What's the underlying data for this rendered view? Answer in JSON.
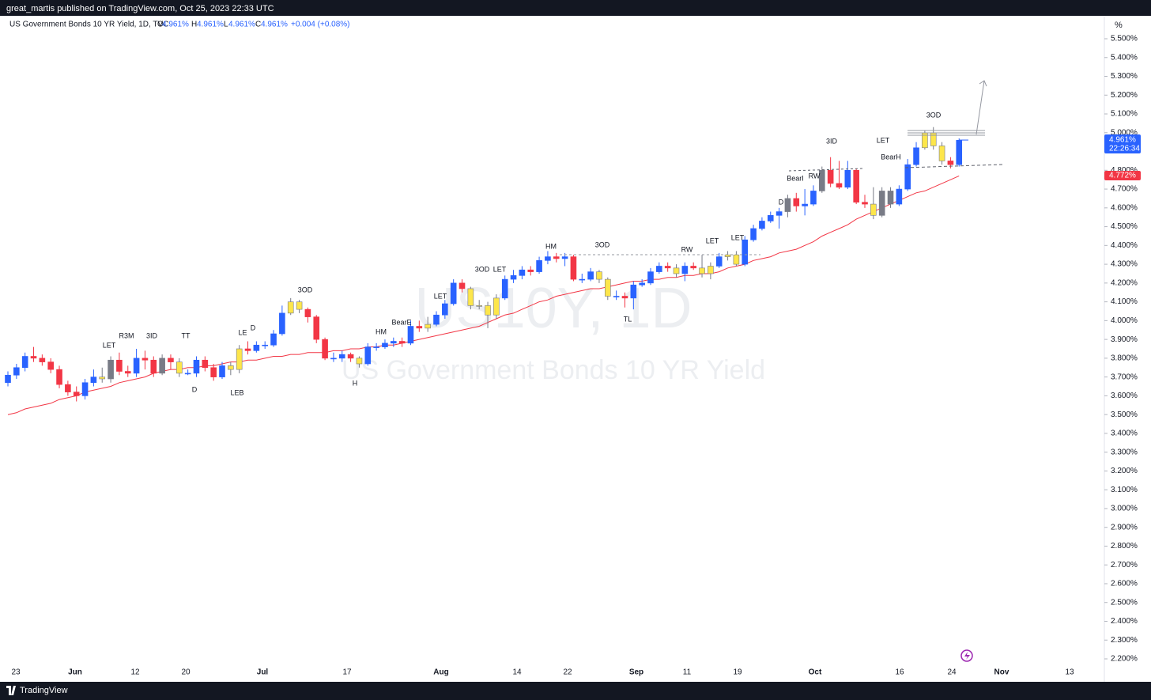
{
  "header": {
    "publisher": "great_martis published on TradingView.com, Oct 25, 2023 22:33 UTC"
  },
  "legend": {
    "title": "US Government Bonds 10 YR Yield, 1D, TVC",
    "items": [
      {
        "key": "O",
        "value": "4.961%"
      },
      {
        "key": "H",
        "value": "4.961%"
      },
      {
        "key": "L",
        "value": "4.961%"
      },
      {
        "key": "C",
        "value": "4.961%"
      }
    ],
    "change": "+0.004 (+0.08%)"
  },
  "watermark": {
    "symbol": "US10Y, 1D",
    "name": "US Government Bonds 10 YR Yield"
  },
  "footer": {
    "brand": "TradingView"
  },
  "chart_data": {
    "type": "candlestick",
    "y_unit": "%",
    "palette": [
      "#2962ff",
      "#f23645",
      "#fde64b",
      "#787b86"
    ],
    "ma_color": "#f23645",
    "open": [
      3.67,
      3.71,
      3.75,
      3.81,
      3.8,
      3.78,
      3.74,
      3.66,
      3.62,
      3.6,
      3.67,
      3.7,
      3.69,
      3.79,
      3.73,
      3.72,
      3.8,
      3.79,
      3.72,
      3.8,
      3.78,
      3.72,
      3.72,
      3.79,
      3.75,
      3.7,
      3.76,
      3.74,
      3.85,
      3.84,
      3.87,
      3.87,
      3.93,
      4.04,
      4.1,
      4.06,
      4.02,
      3.9,
      3.8,
      3.8,
      3.82,
      3.8,
      3.77,
      3.86,
      3.86,
      3.88,
      3.89,
      3.88,
      3.97,
      3.96,
      3.98,
      4.03,
      4.09,
      4.2,
      4.17,
      4.08,
      4.08,
      4.03,
      4.12,
      4.22,
      4.24,
      4.27,
      4.26,
      4.32,
      4.34,
      4.33,
      4.34,
      4.22,
      4.22,
      4.26,
      4.22,
      4.13,
      4.13,
      4.12,
      4.19,
      4.2,
      4.26,
      4.29,
      4.28,
      4.25,
      4.29,
      4.28,
      4.25,
      4.29,
      4.34,
      4.35,
      4.3,
      4.43,
      4.49,
      4.53,
      4.56,
      4.58,
      4.65,
      4.61,
      4.62,
      4.69,
      4.8,
      4.73,
      4.71,
      4.8,
      4.63,
      4.62,
      4.56,
      4.69,
      4.62,
      4.7,
      4.83,
      4.92,
      5.0,
      4.93,
      4.85,
      4.83
    ],
    "high": [
      3.73,
      3.77,
      3.83,
      3.86,
      3.82,
      3.8,
      3.76,
      3.68,
      3.65,
      3.69,
      3.74,
      3.75,
      3.81,
      3.83,
      3.76,
      3.85,
      3.84,
      3.81,
      3.82,
      3.82,
      3.8,
      3.74,
      3.81,
      3.81,
      3.77,
      3.78,
      3.78,
      3.87,
      3.89,
      3.89,
      3.89,
      3.95,
      4.08,
      4.12,
      4.11,
      4.07,
      4.03,
      3.91,
      3.83,
      3.84,
      3.83,
      3.81,
      3.88,
      3.88,
      3.9,
      3.91,
      3.91,
      4.0,
      4.0,
      4.02,
      4.05,
      4.11,
      4.22,
      4.22,
      4.18,
      4.11,
      4.1,
      4.14,
      4.24,
      4.27,
      4.29,
      4.29,
      4.34,
      4.37,
      4.36,
      4.36,
      4.35,
      4.25,
      4.28,
      4.27,
      4.23,
      4.16,
      4.15,
      4.21,
      4.22,
      4.28,
      4.31,
      4.31,
      4.3,
      4.31,
      4.31,
      4.35,
      4.31,
      4.36,
      4.37,
      4.37,
      4.45,
      4.51,
      4.55,
      4.58,
      4.6,
      4.67,
      4.68,
      4.7,
      4.72,
      4.82,
      4.87,
      4.85,
      4.85,
      4.81,
      4.67,
      4.71,
      4.71,
      4.71,
      4.72,
      4.86,
      4.95,
      5.01,
      5.03,
      4.95,
      4.87,
      4.97
    ],
    "low": [
      3.65,
      3.69,
      3.73,
      3.78,
      3.76,
      3.72,
      3.64,
      3.6,
      3.57,
      3.58,
      3.65,
      3.67,
      3.67,
      3.71,
      3.7,
      3.7,
      3.74,
      3.7,
      3.71,
      3.74,
      3.7,
      3.71,
      3.7,
      3.73,
      3.68,
      3.69,
      3.71,
      3.72,
      3.82,
      3.83,
      3.85,
      3.86,
      3.92,
      4.03,
      4.04,
      3.99,
      3.88,
      3.79,
      3.78,
      3.78,
      3.78,
      3.75,
      3.76,
      3.84,
      3.85,
      3.86,
      3.86,
      3.87,
      3.94,
      3.94,
      3.97,
      4.01,
      4.08,
      4.15,
      4.06,
      4.06,
      3.96,
      4.01,
      4.11,
      4.2,
      4.22,
      4.24,
      4.25,
      4.3,
      4.31,
      4.29,
      4.21,
      4.2,
      4.21,
      4.2,
      4.11,
      4.11,
      4.07,
      4.06,
      4.18,
      4.19,
      4.25,
      4.26,
      4.23,
      4.21,
      4.27,
      4.23,
      4.22,
      4.28,
      4.32,
      4.29,
      4.29,
      4.42,
      4.48,
      4.52,
      4.49,
      4.55,
      4.58,
      4.56,
      4.61,
      4.68,
      4.71,
      4.7,
      4.7,
      4.62,
      4.6,
      4.54,
      4.55,
      4.6,
      4.61,
      4.69,
      4.82,
      4.91,
      4.91,
      4.83,
      4.81,
      4.82
    ],
    "close": [
      3.71,
      3.75,
      3.81,
      3.8,
      3.78,
      3.74,
      3.66,
      3.62,
      3.6,
      3.67,
      3.7,
      3.69,
      3.79,
      3.73,
      3.72,
      3.8,
      3.79,
      3.72,
      3.8,
      3.78,
      3.72,
      3.72,
      3.79,
      3.75,
      3.7,
      3.76,
      3.74,
      3.85,
      3.84,
      3.87,
      3.87,
      3.93,
      4.04,
      4.1,
      4.06,
      4.02,
      3.9,
      3.8,
      3.8,
      3.82,
      3.8,
      3.77,
      3.86,
      3.86,
      3.88,
      3.89,
      3.88,
      3.97,
      3.96,
      3.98,
      4.03,
      4.09,
      4.2,
      4.17,
      4.08,
      4.08,
      4.03,
      4.12,
      4.22,
      4.24,
      4.27,
      4.26,
      4.32,
      4.34,
      4.33,
      4.34,
      4.22,
      4.22,
      4.26,
      4.22,
      4.13,
      4.13,
      4.12,
      4.19,
      4.2,
      4.26,
      4.29,
      4.28,
      4.25,
      4.29,
      4.28,
      4.25,
      4.29,
      4.34,
      4.35,
      4.3,
      4.43,
      4.49,
      4.53,
      4.56,
      4.58,
      4.65,
      4.61,
      4.62,
      4.69,
      4.8,
      4.73,
      4.71,
      4.8,
      4.63,
      4.62,
      4.56,
      4.69,
      4.62,
      4.7,
      4.83,
      4.92,
      5.0,
      4.93,
      4.85,
      4.83,
      4.96
    ],
    "color_index": [
      0,
      0,
      0,
      1,
      1,
      1,
      1,
      1,
      1,
      0,
      0,
      2,
      3,
      1,
      1,
      0,
      1,
      1,
      3,
      1,
      2,
      0,
      0,
      1,
      1,
      0,
      2,
      2,
      1,
      0,
      0,
      0,
      0,
      2,
      2,
      1,
      1,
      1,
      0,
      0,
      1,
      2,
      0,
      0,
      0,
      0,
      1,
      0,
      1,
      2,
      0,
      0,
      0,
      1,
      2,
      2,
      2,
      2,
      0,
      0,
      0,
      1,
      0,
      0,
      1,
      0,
      1,
      0,
      0,
      2,
      2,
      0,
      1,
      0,
      0,
      0,
      0,
      1,
      2,
      0,
      1,
      2,
      2,
      0,
      2,
      2,
      0,
      0,
      0,
      0,
      0,
      3,
      1,
      0,
      0,
      3,
      1,
      1,
      0,
      1,
      1,
      2,
      3,
      3,
      0,
      0,
      0,
      2,
      2,
      2,
      1,
      0
    ],
    "ma": [
      3.5,
      3.51,
      3.53,
      3.54,
      3.55,
      3.56,
      3.58,
      3.59,
      3.6,
      3.62,
      3.63,
      3.64,
      3.65,
      3.67,
      3.68,
      3.69,
      3.7,
      3.72,
      3.73,
      3.74,
      3.74,
      3.75,
      3.75,
      3.76,
      3.76,
      3.77,
      3.78,
      3.78,
      3.79,
      3.79,
      3.8,
      3.81,
      3.81,
      3.82,
      3.82,
      3.83,
      3.83,
      3.83,
      3.84,
      3.84,
      3.85,
      3.85,
      3.86,
      3.86,
      3.87,
      3.87,
      3.88,
      3.89,
      3.9,
      3.91,
      3.92,
      3.93,
      3.94,
      3.95,
      3.96,
      3.97,
      3.99,
      4.01,
      4.03,
      4.04,
      4.06,
      4.08,
      4.1,
      4.11,
      4.13,
      4.14,
      4.15,
      4.16,
      4.17,
      4.17,
      4.18,
      4.19,
      4.2,
      4.21,
      4.21,
      4.22,
      4.22,
      4.23,
      4.23,
      4.24,
      4.24,
      4.25,
      4.25,
      4.26,
      4.28,
      4.29,
      4.3,
      4.32,
      4.33,
      4.34,
      4.36,
      4.37,
      4.38,
      4.4,
      4.42,
      4.45,
      4.47,
      4.49,
      4.51,
      4.54,
      4.56,
      4.58,
      4.6,
      4.62,
      4.64,
      4.66,
      4.68,
      4.69,
      4.71,
      4.73,
      4.75,
      4.77
    ],
    "last_price": {
      "value": 4.961,
      "label": "4.961%",
      "countdown": "22:26:34"
    },
    "ma_last": {
      "value": 4.772,
      "label": "4.772%"
    },
    "ylim": [
      2.2,
      5.5
    ],
    "yticks": [
      {
        "value": 2.2,
        "label": "2.200%"
      },
      {
        "value": 2.3,
        "label": "2.300%"
      },
      {
        "value": 2.4,
        "label": "2.400%"
      },
      {
        "value": 2.5,
        "label": "2.500%"
      },
      {
        "value": 2.6,
        "label": "2.600%"
      },
      {
        "value": 2.7,
        "label": "2.700%"
      },
      {
        "value": 2.8,
        "label": "2.800%"
      },
      {
        "value": 2.9,
        "label": "2.900%"
      },
      {
        "value": 3.0,
        "label": "3.000%"
      },
      {
        "value": 3.1,
        "label": "3.100%"
      },
      {
        "value": 3.2,
        "label": "3.200%"
      },
      {
        "value": 3.3,
        "label": "3.300%"
      },
      {
        "value": 3.4,
        "label": "3.400%"
      },
      {
        "value": 3.5,
        "label": "3.500%"
      },
      {
        "value": 3.6,
        "label": "3.600%"
      },
      {
        "value": 3.7,
        "label": "3.700%"
      },
      {
        "value": 3.8,
        "label": "3.800%"
      },
      {
        "value": 3.9,
        "label": "3.900%"
      },
      {
        "value": 4.0,
        "label": "4.000%"
      },
      {
        "value": 4.1,
        "label": "4.100%"
      },
      {
        "value": 4.2,
        "label": "4.200%"
      },
      {
        "value": 4.3,
        "label": "4.300%"
      },
      {
        "value": 4.4,
        "label": "4.400%"
      },
      {
        "value": 4.5,
        "label": "4.500%"
      },
      {
        "value": 4.6,
        "label": "4.600%"
      },
      {
        "value": 4.7,
        "label": "4.700%"
      },
      {
        "value": 4.8,
        "label": "4.800%"
      },
      {
        "value": 4.9,
        "label": "4.900%"
      },
      {
        "value": 5.0,
        "label": "5.000%"
      },
      {
        "value": 5.1,
        "label": "5.100%"
      },
      {
        "value": 5.2,
        "label": "5.200%"
      },
      {
        "value": 5.3,
        "label": "5.300%"
      },
      {
        "value": 5.4,
        "label": "5.400%"
      },
      {
        "value": 5.5,
        "label": "5.500%"
      }
    ],
    "x_labels": [
      "23",
      "Jun",
      "12",
      "20",
      "Jul",
      "17",
      "Aug",
      "14",
      "22",
      "Sep",
      "11",
      "19",
      "Oct",
      "16",
      "24",
      "Nov",
      "13"
    ],
    "annotations": [
      "LET",
      "R3M",
      "3ID",
      "TT",
      "D",
      "LE",
      "D",
      "LEB",
      "3OD",
      "HM",
      "H",
      "BearE",
      "LET",
      "3OD",
      "LET",
      "HM",
      "3OD",
      "TL",
      "RW",
      "LET",
      "LET",
      "D",
      "BearI",
      "RW",
      "3ID",
      "LET",
      "BearH",
      "3OD"
    ]
  }
}
